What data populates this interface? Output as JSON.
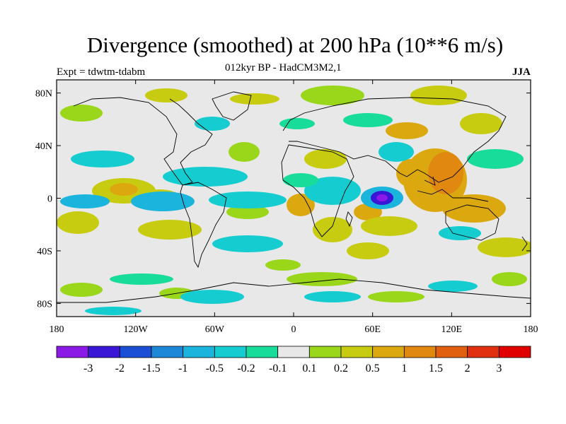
{
  "title": "Divergence (smoothed) at 200 hPa (10**6 m/s)",
  "subtitle": "012kyr BP - HadCM3M2,1",
  "experiment": "Expt = tdwtm-tdabm",
  "season": "JJA",
  "lat_ticks": [
    "80N",
    "40N",
    "0",
    "40S",
    "80S"
  ],
  "lon_ticks": [
    "180",
    "120W",
    "60W",
    "0",
    "60E",
    "120E",
    "180"
  ],
  "colorbar": {
    "labels": [
      "-3",
      "-2",
      "-1.5",
      "-1",
      "-0.5",
      "-0.2",
      "-0.1",
      "0.1",
      "0.2",
      "0.5",
      "1",
      "1.5",
      "2",
      "3"
    ],
    "colors": [
      "#8c1ae6",
      "#3a17d6",
      "#1a4fd6",
      "#1e88d8",
      "#1ab4dc",
      "#15cdd0",
      "#18dc9a",
      "#e8e8e8",
      "#9ad61a",
      "#c8cc10",
      "#dca810",
      "#e08810",
      "#e06010",
      "#e03010",
      "#e00000"
    ]
  },
  "colors": {
    "background": "#e8e8e8",
    "coast": "#000000"
  }
}
